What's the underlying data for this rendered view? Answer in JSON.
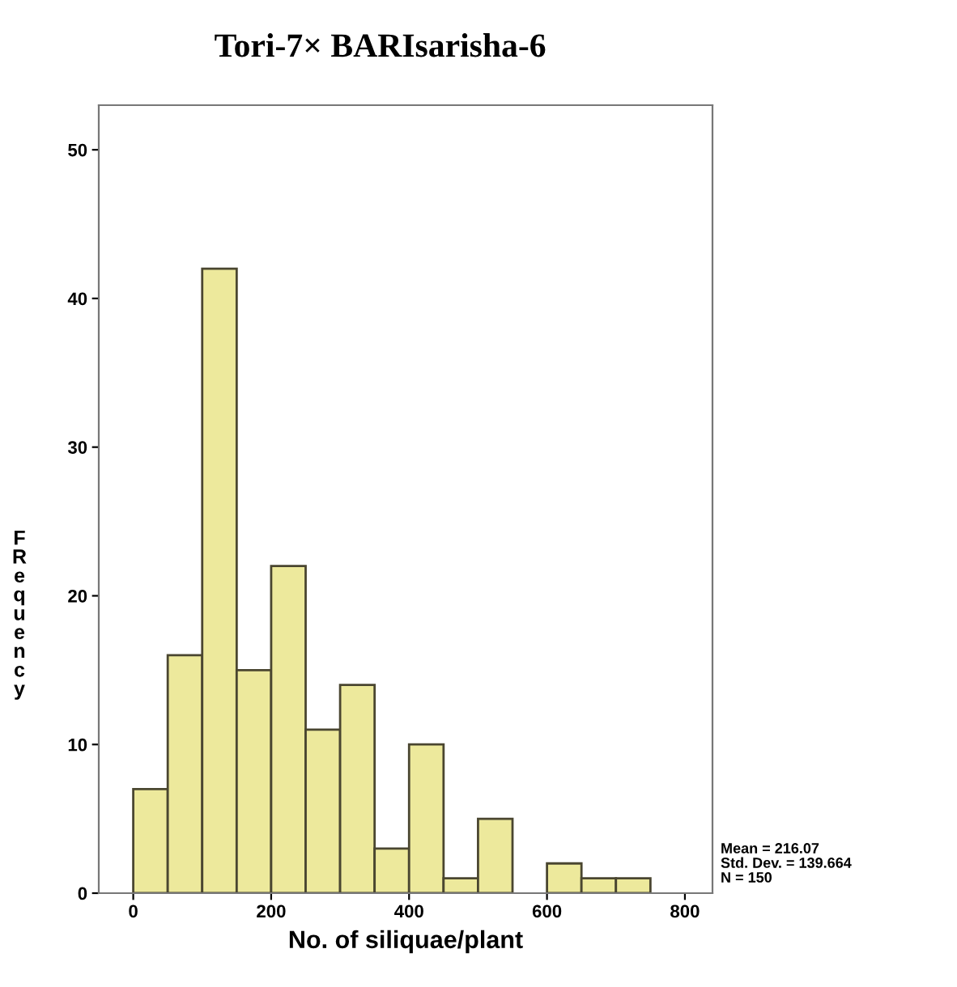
{
  "chart_data": {
    "type": "histogram",
    "title": "Tori-7× BARIsarisha-6",
    "xlabel": "No. of siliquae/plant",
    "ylabel": "FRequency",
    "bins": [
      0,
      50,
      100,
      150,
      200,
      250,
      300,
      350,
      400,
      450,
      500,
      550,
      600,
      650,
      700,
      750
    ],
    "values": [
      7,
      16,
      42,
      15,
      22,
      11,
      14,
      3,
      10,
      1,
      5,
      0,
      2,
      1,
      1
    ],
    "color": "#ede99c",
    "xlim": [
      -50,
      840
    ],
    "xticks": [
      0,
      200,
      400,
      600,
      800
    ],
    "ylim": [
      0,
      53
    ],
    "yticks": [
      0,
      10,
      20,
      30,
      40,
      50
    ],
    "grid": false,
    "legend": false,
    "annotations": [
      "Mean = 216.07",
      "Std. Dev. = 139.664",
      "N = 150"
    ]
  }
}
